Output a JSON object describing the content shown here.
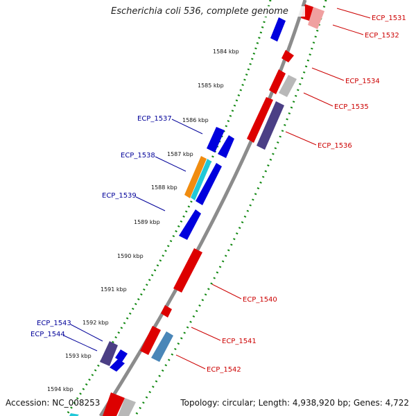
{
  "title": "Escherichia coli 536, complete genome",
  "footer": {
    "accession": "Accession: NC_008253",
    "topology": "Topology: circular; Length: 4,938,920 bp; Genes: 4,722"
  },
  "kbp_ticks": [
    "1584 kbp",
    "1585 kbp",
    "1586 kbp",
    "1587 kbp",
    "1588 kbp",
    "1589 kbp",
    "1590 kbp",
    "1591 kbp",
    "1592 kbp",
    "1593 kbp",
    "1594 kbp"
  ],
  "gene_labels_right": [
    "ECP_1531",
    "ECP_1532",
    "ECP_1534",
    "ECP_1535",
    "ECP_1536",
    "ECP_1540",
    "ECP_1541",
    "ECP_1542"
  ],
  "gene_labels_left": [
    "ECP_1537",
    "ECP_1538",
    "ECP_1539",
    "ECP_1543",
    "ECP_1544"
  ],
  "colors": {
    "forward_strand": "#0000dd",
    "reverse_strand": "#dd0000",
    "dark_feature": "#4b3f85",
    "grey_feature": "#b8b8b8",
    "orange_feature": "#f08c10",
    "cyan_feature": "#20c8d8",
    "steel_feature": "#4a86b8",
    "pink_feature": "#f0a0a0",
    "backbone": "#8c8c8c",
    "gc_dots": "#118811",
    "label_right": "#cc0000",
    "label_left": "#000099"
  }
}
